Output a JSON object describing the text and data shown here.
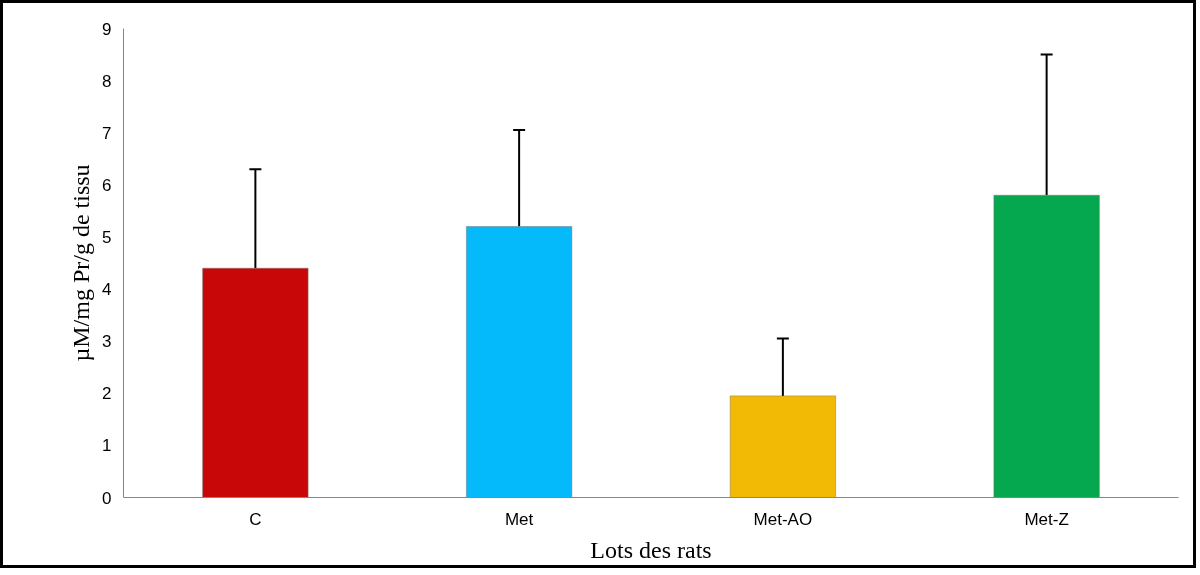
{
  "chart_data": {
    "type": "bar",
    "xlabel": "Lots des rats",
    "ylabel": "µM/mg Pr/g de tissu",
    "categories": [
      "C",
      "Met",
      "Met-AO",
      "Met-Z"
    ],
    "values": [
      4.4,
      5.2,
      1.95,
      5.8
    ],
    "colors": [
      "#c80808",
      "#04bafa",
      "#f2ba04",
      "#05a84e"
    ],
    "errors": [
      [
        4.4,
        6.3
      ],
      [
        5.2,
        7.05
      ],
      [
        1.95,
        3.05
      ],
      [
        5.8,
        8.5
      ]
    ],
    "ylim": [
      0,
      9
    ],
    "yticks": [
      0,
      1,
      2,
      3,
      4,
      5,
      6,
      7,
      8,
      9
    ],
    "grid": false
  }
}
